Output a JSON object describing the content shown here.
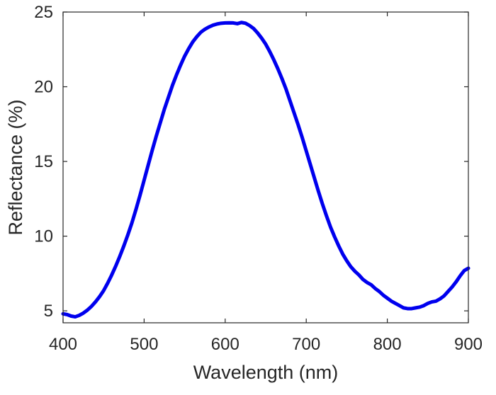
{
  "chart_data": {
    "type": "line",
    "title": "",
    "xlabel": "Wavelength (nm)",
    "ylabel": "Reflectance (%)",
    "xlim": [
      400,
      900
    ],
    "ylim": [
      4.2,
      25
    ],
    "xticks": [
      400,
      500,
      600,
      700,
      800,
      900
    ],
    "yticks": [
      5,
      10,
      15,
      20,
      25
    ],
    "xtick_labels": [
      "400",
      "500",
      "600",
      "700",
      "800",
      "900"
    ],
    "ytick_labels": [
      "5",
      "10",
      "15",
      "20",
      "25"
    ],
    "grid": false,
    "legend": "none",
    "series": [
      {
        "color": "#0000ee",
        "points": [
          [
            400,
            4.8
          ],
          [
            405,
            4.75
          ],
          [
            410,
            4.65
          ],
          [
            415,
            4.6
          ],
          [
            420,
            4.7
          ],
          [
            425,
            4.85
          ],
          [
            430,
            5.05
          ],
          [
            435,
            5.3
          ],
          [
            440,
            5.6
          ],
          [
            445,
            5.95
          ],
          [
            450,
            6.35
          ],
          [
            455,
            6.85
          ],
          [
            460,
            7.4
          ],
          [
            465,
            8.0
          ],
          [
            470,
            8.65
          ],
          [
            475,
            9.35
          ],
          [
            480,
            10.1
          ],
          [
            485,
            10.9
          ],
          [
            490,
            11.8
          ],
          [
            495,
            12.75
          ],
          [
            500,
            13.75
          ],
          [
            505,
            14.75
          ],
          [
            510,
            15.75
          ],
          [
            515,
            16.7
          ],
          [
            520,
            17.6
          ],
          [
            525,
            18.5
          ],
          [
            530,
            19.3
          ],
          [
            535,
            20.1
          ],
          [
            540,
            20.8
          ],
          [
            545,
            21.45
          ],
          [
            550,
            22.05
          ],
          [
            555,
            22.55
          ],
          [
            560,
            23.0
          ],
          [
            565,
            23.35
          ],
          [
            570,
            23.65
          ],
          [
            575,
            23.85
          ],
          [
            580,
            24.0
          ],
          [
            585,
            24.12
          ],
          [
            590,
            24.2
          ],
          [
            595,
            24.25
          ],
          [
            600,
            24.27
          ],
          [
            605,
            24.28
          ],
          [
            610,
            24.27
          ],
          [
            615,
            24.22
          ],
          [
            620,
            24.3
          ],
          [
            625,
            24.25
          ],
          [
            630,
            24.1
          ],
          [
            635,
            23.9
          ],
          [
            640,
            23.6
          ],
          [
            645,
            23.25
          ],
          [
            650,
            22.85
          ],
          [
            655,
            22.35
          ],
          [
            660,
            21.8
          ],
          [
            665,
            21.2
          ],
          [
            670,
            20.55
          ],
          [
            675,
            19.85
          ],
          [
            680,
            19.05
          ],
          [
            685,
            18.25
          ],
          [
            690,
            17.45
          ],
          [
            695,
            16.6
          ],
          [
            700,
            15.7
          ],
          [
            705,
            14.8
          ],
          [
            710,
            13.9
          ],
          [
            715,
            13.0
          ],
          [
            720,
            12.15
          ],
          [
            725,
            11.35
          ],
          [
            730,
            10.6
          ],
          [
            735,
            9.95
          ],
          [
            740,
            9.35
          ],
          [
            745,
            8.8
          ],
          [
            750,
            8.35
          ],
          [
            755,
            7.95
          ],
          [
            760,
            7.65
          ],
          [
            765,
            7.4
          ],
          [
            770,
            7.1
          ],
          [
            775,
            6.9
          ],
          [
            780,
            6.75
          ],
          [
            785,
            6.5
          ],
          [
            790,
            6.3
          ],
          [
            795,
            6.05
          ],
          [
            800,
            5.85
          ],
          [
            805,
            5.65
          ],
          [
            810,
            5.5
          ],
          [
            815,
            5.35
          ],
          [
            820,
            5.2
          ],
          [
            825,
            5.15
          ],
          [
            830,
            5.15
          ],
          [
            835,
            5.2
          ],
          [
            840,
            5.25
          ],
          [
            845,
            5.35
          ],
          [
            850,
            5.5
          ],
          [
            855,
            5.6
          ],
          [
            860,
            5.65
          ],
          [
            865,
            5.8
          ],
          [
            870,
            6.0
          ],
          [
            875,
            6.3
          ],
          [
            880,
            6.6
          ],
          [
            885,
            6.95
          ],
          [
            890,
            7.35
          ],
          [
            895,
            7.7
          ],
          [
            900,
            7.85
          ]
        ]
      }
    ]
  }
}
